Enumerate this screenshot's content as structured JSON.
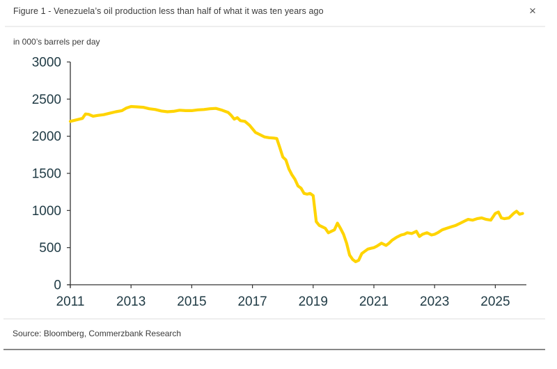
{
  "header": {
    "title": "Figure 1 - Venezuela’s oil production less than half of what it was ten years ago",
    "close_icon": "close-icon ×",
    "close_glyph": "×"
  },
  "unit_label": "in 000’s barrels per day",
  "footer": {
    "source": "Source: Bloomberg, Commerzbank Research"
  },
  "colors": {
    "line": "#FFD400",
    "axis": "#333333",
    "tick_text": "#1f3a44"
  },
  "chart_data": {
    "type": "line",
    "title": "Figure 1 - Venezuela’s oil production less than half of what it was ten years ago",
    "xlabel": "",
    "ylabel": "in 000’s barrels per day",
    "xlim": [
      2011,
      2026.0
    ],
    "ylim": [
      0,
      3000
    ],
    "x_ticks": [
      2011,
      2013,
      2015,
      2017,
      2019,
      2021,
      2023,
      2025
    ],
    "x_tick_labels": [
      "2011",
      "2013",
      "2015",
      "2017",
      "2019",
      "2021",
      "2023",
      "2025"
    ],
    "y_ticks": [
      0,
      500,
      1000,
      1500,
      2000,
      2500,
      3000
    ],
    "y_tick_labels": [
      "0",
      "500",
      "1000",
      "1500",
      "2000",
      "2500",
      "3000"
    ],
    "grid": false,
    "legend": "none",
    "series": [
      {
        "name": "Venezuela oil production",
        "x": [
          2011.0,
          2011.2,
          2011.4,
          2011.5,
          2011.6,
          2011.75,
          2011.9,
          2012.1,
          2012.3,
          2012.5,
          2012.7,
          2012.85,
          2013.0,
          2013.2,
          2013.4,
          2013.6,
          2013.8,
          2014.0,
          2014.2,
          2014.4,
          2014.6,
          2014.8,
          2015.0,
          2015.2,
          2015.4,
          2015.6,
          2015.8,
          2016.0,
          2016.2,
          2016.3,
          2016.4,
          2016.5,
          2016.6,
          2016.75,
          2016.9,
          2017.0,
          2017.1,
          2017.25,
          2017.4,
          2017.55,
          2017.7,
          2017.8,
          2017.9,
          2018.0,
          2018.1,
          2018.2,
          2018.3,
          2018.4,
          2018.5,
          2018.6,
          2018.7,
          2018.8,
          2018.9,
          2019.0,
          2019.1,
          2019.2,
          2019.3,
          2019.4,
          2019.5,
          2019.6,
          2019.7,
          2019.8,
          2019.9,
          2020.0,
          2020.1,
          2020.2,
          2020.3,
          2020.4,
          2020.5,
          2020.6,
          2020.7,
          2020.8,
          2020.9,
          2021.0,
          2021.1,
          2021.25,
          2021.4,
          2021.5,
          2021.6,
          2021.75,
          2021.9,
          2022.0,
          2022.1,
          2022.25,
          2022.4,
          2022.5,
          2022.6,
          2022.75,
          2022.9,
          2023.0,
          2023.1,
          2023.25,
          2023.4,
          2023.55,
          2023.7,
          2023.85,
          2024.0,
          2024.1,
          2024.25,
          2024.4,
          2024.55,
          2024.7,
          2024.85,
          2025.0,
          2025.1,
          2025.2,
          2025.3,
          2025.45,
          2025.6,
          2025.7,
          2025.8,
          2025.9
        ],
        "values": [
          2200,
          2220,
          2240,
          2300,
          2295,
          2270,
          2280,
          2290,
          2310,
          2330,
          2345,
          2380,
          2400,
          2395,
          2390,
          2370,
          2360,
          2340,
          2330,
          2335,
          2350,
          2345,
          2345,
          2355,
          2360,
          2370,
          2375,
          2350,
          2320,
          2280,
          2230,
          2250,
          2210,
          2200,
          2150,
          2100,
          2050,
          2020,
          1990,
          1980,
          1975,
          1970,
          1850,
          1720,
          1680,
          1560,
          1480,
          1420,
          1330,
          1300,
          1230,
          1220,
          1230,
          1200,
          850,
          800,
          780,
          760,
          700,
          720,
          740,
          830,
          760,
          680,
          560,
          400,
          340,
          310,
          330,
          420,
          450,
          480,
          490,
          500,
          520,
          560,
          530,
          560,
          600,
          640,
          670,
          680,
          700,
          690,
          720,
          650,
          680,
          700,
          670,
          680,
          700,
          740,
          760,
          780,
          800,
          830,
          860,
          880,
          870,
          890,
          900,
          880,
          870,
          960,
          980,
          900,
          890,
          900,
          960,
          990,
          950,
          960
        ]
      }
    ]
  }
}
